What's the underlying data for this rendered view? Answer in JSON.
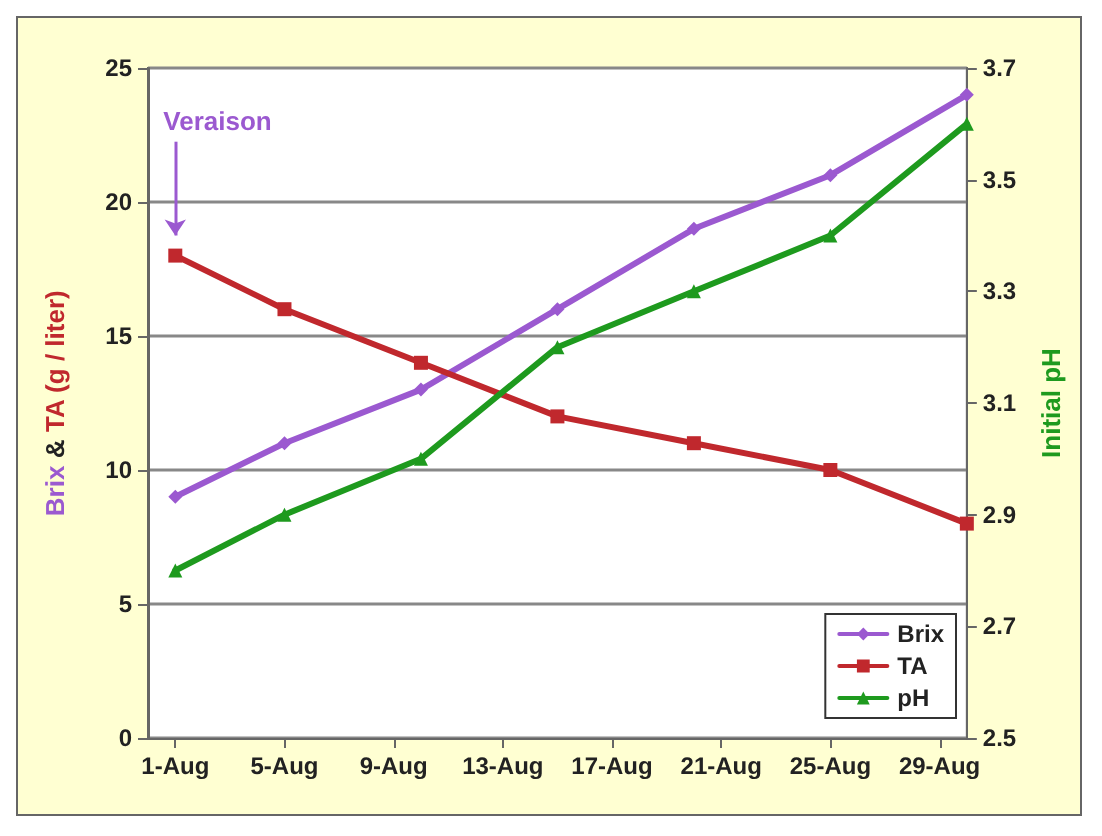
{
  "chart_data": {
    "type": "line",
    "ylabel": "Brix & TA (g / liter)",
    "y2label": "Initial pH",
    "x": [
      "--08-01",
      "--08-05",
      "--08-10",
      "--08-15",
      "--08-20",
      "--08-25",
      "--08-30"
    ],
    "series": [
      {
        "name": "Brix",
        "color": "#9b59d0",
        "marker": "diamond",
        "values": [
          9,
          11,
          13,
          16,
          19,
          21,
          24
        ]
      },
      {
        "name": "TA",
        "color": "#c0282d",
        "marker": "square",
        "values": [
          18,
          16,
          14,
          12,
          11,
          10,
          8
        ]
      },
      {
        "name": "pH",
        "color": "#1e9a1e",
        "marker": "triangle",
        "axis": "y2",
        "values": [
          2.8,
          2.9,
          3.0,
          3.2,
          3.3,
          3.4,
          3.6
        ]
      }
    ],
    "xlim": [
      "--07-31",
      "--08-30"
    ],
    "xticks": [
      {
        "value": "--08-01",
        "label": "1-Aug"
      },
      {
        "value": "--08-05",
        "label": "5-Aug"
      },
      {
        "value": "--08-09",
        "label": "9-Aug"
      },
      {
        "value": "--08-13",
        "label": "13-Aug"
      },
      {
        "value": "--08-17",
        "label": "17-Aug"
      },
      {
        "value": "--08-21",
        "label": "21-Aug"
      },
      {
        "value": "--08-25",
        "label": "25-Aug"
      },
      {
        "value": "--08-29",
        "label": "29-Aug"
      }
    ],
    "ylim": [
      0,
      25
    ],
    "yticks": [
      0,
      5,
      10,
      15,
      20,
      25
    ],
    "y2lim": [
      2.5,
      3.7
    ],
    "y2ticks": [
      2.5,
      2.7,
      2.9,
      3.1,
      3.3,
      3.5,
      3.7
    ],
    "annotations": [
      "Veraison"
    ],
    "grid": "y",
    "legend": "bottom right",
    "line_style": "solid"
  }
}
